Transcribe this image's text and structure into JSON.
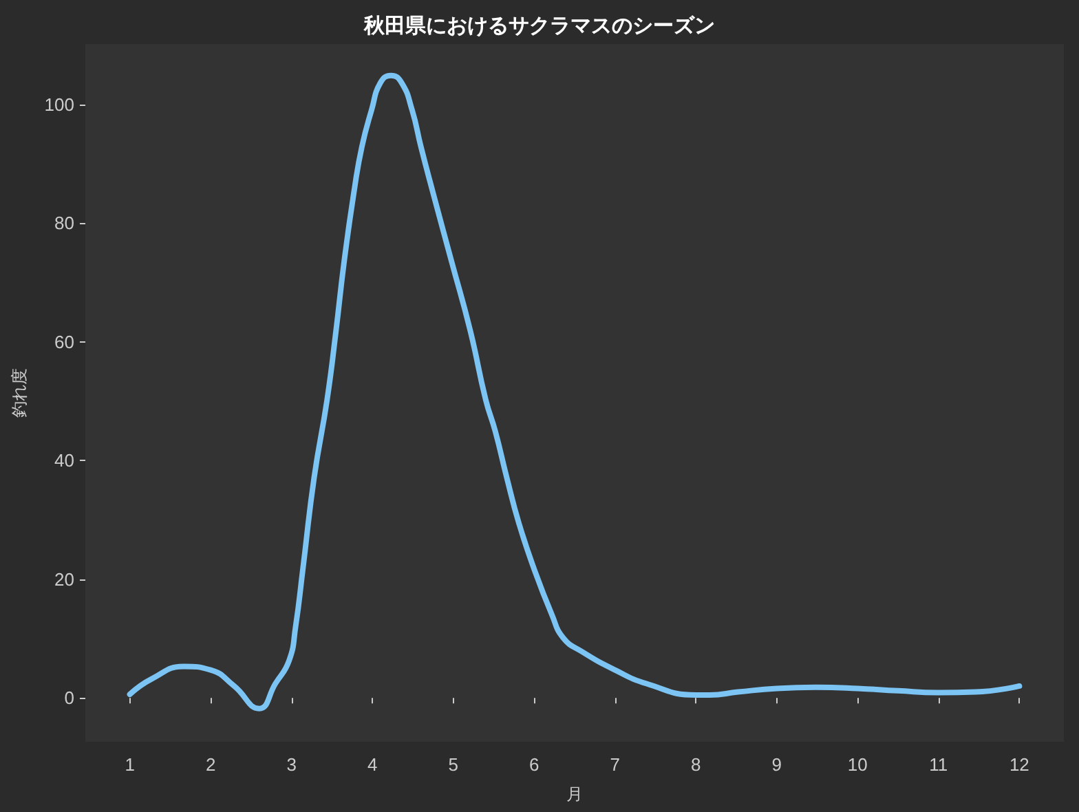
{
  "chart_data": {
    "type": "line",
    "title": "秋田県におけるサクラマスのシーズン",
    "xlabel": "月",
    "ylabel": "釣れ度",
    "x": [
      1.0,
      1.27,
      1.67,
      2.0,
      2.29,
      2.6,
      2.8,
      2.97,
      3.05,
      3.14,
      3.28,
      3.44,
      3.55,
      3.65,
      3.77,
      3.87,
      3.99,
      4.1,
      4.23,
      4.36,
      4.49,
      4.6,
      4.75,
      4.98,
      5.21,
      5.4,
      5.52,
      5.66,
      5.81,
      6.0,
      6.22,
      6.36,
      6.59,
      7.0,
      7.39,
      8.0,
      8.17,
      8.52,
      9.0,
      9.48,
      10.0,
      10.5,
      11.0,
      11.46,
      12.0
    ],
    "series": [
      {
        "color": "#7cc4f4",
        "values": [
          0.6,
          3.2,
          5.3,
          4.7,
          2.0,
          -1.8,
          2.4,
          6.3,
          12.0,
          21.7,
          37.2,
          50.3,
          61.9,
          73.5,
          85.1,
          92.9,
          99.1,
          103.7,
          104.9,
          103.7,
          99.1,
          92.9,
          85.1,
          73.5,
          61.9,
          50.3,
          44.9,
          37.2,
          29.5,
          21.7,
          14.0,
          10.1,
          7.8,
          4.7,
          2.4,
          0.5,
          0.5,
          1.0,
          1.6,
          1.8,
          1.6,
          1.2,
          0.9,
          1.0,
          2.0
        ]
      }
    ],
    "xlim": [
      0.45,
      12.55
    ],
    "ylim": [
      -7.4,
      110.2
    ],
    "xticks": [
      1,
      2,
      3,
      4,
      5,
      6,
      7,
      8,
      9,
      10,
      11,
      12
    ],
    "yticks": [
      0,
      20,
      40,
      60,
      80,
      100
    ],
    "grid": false,
    "marker": "none",
    "line_style": "solid"
  }
}
